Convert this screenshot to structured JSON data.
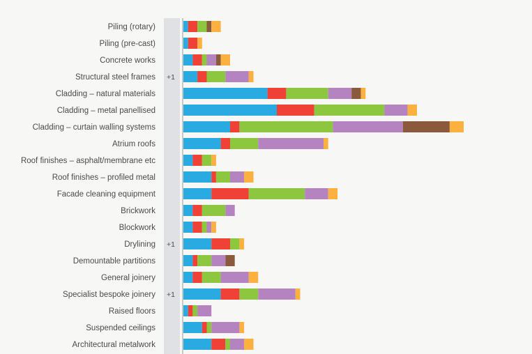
{
  "colors": [
    "#29abe2",
    "#ef4136",
    "#8dc63f",
    "#b584c0",
    "#8b5a3c",
    "#fbb040"
  ],
  "badge_column_color": "#dfe1e5",
  "axis_color": "#9a9a9a",
  "chart_data": {
    "type": "bar",
    "orientation": "horizontal",
    "stacked": true,
    "categories": [
      "Piling (rotary)",
      "Piling (pre-cast)",
      "Concrete works",
      "Structural steel frames",
      "Cladding – natural materials",
      "Cladding – metal panellised",
      "Cladding – curtain walling systems",
      "Atrium roofs",
      "Roof finishes – asphalt/membrane etc",
      "Roof finishes – profiled metal",
      "Facade cleaning equipment",
      "Brickwork",
      "Blockwork",
      "Drylining",
      "Demountable partitions",
      "General joinery",
      "Specialist bespoke joinery",
      "Raised floors",
      "Suspended ceilings",
      "Architectural metalwork"
    ],
    "badges": [
      "",
      "",
      "",
      "+1",
      "",
      "",
      "",
      "",
      "",
      "",
      "",
      "",
      "",
      "+1",
      "",
      "",
      "+1",
      "",
      "",
      ""
    ],
    "series": [
      {
        "values": [
          1,
          1,
          2,
          3,
          18,
          20,
          10,
          8,
          2,
          6,
          6,
          2,
          2,
          6,
          2,
          2,
          8,
          1,
          4,
          6
        ]
      },
      {
        "values": [
          2,
          2,
          2,
          2,
          4,
          8,
          2,
          2,
          2,
          1,
          8,
          2,
          2,
          4,
          1,
          2,
          4,
          1,
          1,
          3
        ]
      },
      {
        "values": [
          2,
          0,
          1,
          4,
          9,
          15,
          20,
          6,
          2,
          3,
          12,
          5,
          1,
          2,
          3,
          4,
          4,
          1,
          1,
          1
        ]
      },
      {
        "values": [
          0,
          0,
          2,
          5,
          5,
          5,
          15,
          14,
          0,
          3,
          5,
          2,
          1,
          0,
          3,
          6,
          8,
          3,
          6,
          3
        ]
      },
      {
        "values": [
          1,
          0,
          1,
          0,
          2,
          0,
          10,
          0,
          0,
          0,
          0,
          0,
          0,
          0,
          2,
          0,
          0,
          0,
          0,
          0
        ]
      },
      {
        "values": [
          2,
          1,
          2,
          1,
          1,
          2,
          3,
          1,
          1,
          2,
          2,
          0,
          1,
          1,
          0,
          2,
          1,
          0,
          1,
          2
        ]
      }
    ]
  }
}
